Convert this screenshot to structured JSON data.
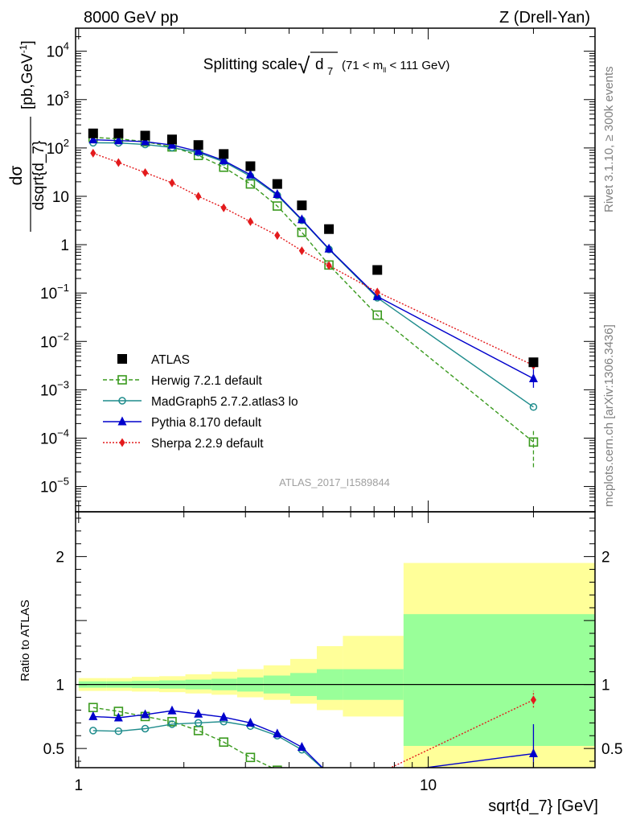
{
  "header": {
    "left": "8000 GeV pp",
    "right": "Z (Drell-Yan)"
  },
  "side_text": {
    "rivet": "Rivet 3.1.10, ≥ 300k events",
    "mcplots": "mcplots.cern.ch [arXiv:1306.3436]"
  },
  "chart_data": [
    {
      "type": "line",
      "panel": "main",
      "title": "Splitting scale",
      "title_symbol": "√d7",
      "title_cut": "(71 < m_ll < 111 GeV)",
      "title_sqrt": "√",
      "title_d": "d",
      "title_sub": "7",
      "title_cut_pre": "(71 < m",
      "title_cut_sub": "ll",
      "title_cut_post": " < 111 GeV)",
      "ylabel_num": "dσ",
      "ylabel_den": "dsqrt{d_7}",
      "ylabel_units": "[pb,GeV",
      "ylabel_units_sup": "-1",
      "ylabel_units_end": "]",
      "x_scale": "log",
      "y_scale": "log",
      "xlim": [
        0.98,
        30
      ],
      "ylim": [
        3e-06,
        30000
      ],
      "y_ticks": [
        {
          "v": 1e-05,
          "base": "10",
          "exp": "−5"
        },
        {
          "v": 0.0001,
          "base": "10",
          "exp": "−4"
        },
        {
          "v": 0.001,
          "base": "10",
          "exp": "−3"
        },
        {
          "v": 0.01,
          "base": "10",
          "exp": "−2"
        },
        {
          "v": 0.1,
          "base": "10",
          "exp": "−1"
        },
        {
          "v": 1,
          "base": "1",
          "exp": ""
        },
        {
          "v": 10,
          "base": "10",
          "exp": ""
        },
        {
          "v": 100,
          "base": "10",
          "exp": "2"
        },
        {
          "v": 1000,
          "base": "10",
          "exp": "3"
        },
        {
          "v": 10000,
          "base": "10",
          "exp": "4"
        }
      ],
      "watermark": "ATLAS_2017_I1589844",
      "legend_position": "bottom-left",
      "series": [
        {
          "name": "ATLAS",
          "color": "#000000",
          "marker": "filled-square",
          "line": "none",
          "x": [
            1.1,
            1.3,
            1.55,
            1.85,
            2.2,
            2.6,
            3.1,
            3.7,
            4.35,
            5.2,
            7.15,
            20.0
          ],
          "y": [
            200,
            200,
            180,
            150,
            115,
            75,
            42,
            18,
            6.5,
            2.1,
            0.3,
            0.0037
          ]
        },
        {
          "name": "Herwig 7.2.1 default",
          "color": "#3a9a1e",
          "marker": "open-square",
          "line": "dashed",
          "x": [
            1.1,
            1.3,
            1.55,
            1.85,
            2.2,
            2.6,
            3.1,
            3.7,
            4.35,
            5.2,
            7.15,
            20.0
          ],
          "y": [
            165,
            155,
            135,
            105,
            70,
            40,
            18,
            6.3,
            1.8,
            0.38,
            0.035,
            8.3e-05
          ],
          "err_last": [
            2.5e-05,
            0.00015
          ]
        },
        {
          "name": "MadGraph5 2.7.2.atlas3 lo",
          "color": "#1f8c8c",
          "marker": "open-circle",
          "line": "solid",
          "x": [
            1.1,
            1.3,
            1.55,
            1.85,
            2.2,
            2.6,
            3.1,
            3.7,
            4.35,
            5.2,
            7.15,
            20.0
          ],
          "y": [
            128,
            127,
            118,
            102,
            80,
            52,
            26,
            10.5,
            3.2,
            0.8,
            0.08,
            0.00044
          ]
        },
        {
          "name": "Pythia 8.170 default",
          "color": "#0000cc",
          "marker": "filled-triangle",
          "line": "solid",
          "x": [
            1.1,
            1.3,
            1.55,
            1.85,
            2.2,
            2.6,
            3.1,
            3.7,
            4.35,
            5.2,
            7.15,
            20.0
          ],
          "y": [
            148,
            142,
            135,
            115,
            85,
            55,
            28,
            11,
            3.3,
            0.82,
            0.085,
            0.0017
          ],
          "err_last": [
            0.0011,
            0.0027
          ]
        },
        {
          "name": "Sherpa 2.2.9 default",
          "color": "#e31a1c",
          "marker": "filled-diamond",
          "line": "dotted",
          "x": [
            1.1,
            1.3,
            1.55,
            1.85,
            2.2,
            2.6,
            3.1,
            3.7,
            4.35,
            5.2,
            7.15,
            20.0
          ],
          "y": [
            78,
            50,
            31,
            19,
            10,
            5.8,
            3.0,
            1.55,
            0.75,
            0.37,
            0.105,
            0.0032
          ]
        }
      ]
    },
    {
      "type": "line",
      "panel": "ratio",
      "ylabel": "Ratio to ATLAS",
      "xlabel": "sqrt{d_7} [GeV]",
      "x_scale": "log",
      "xlim": [
        0.98,
        30
      ],
      "ylim": [
        0.35,
        2.35
      ],
      "y_ticks": [
        0.5,
        1,
        2
      ],
      "x_ticks": [
        {
          "v": 1,
          "label": "1"
        },
        {
          "v": 10,
          "label": "10"
        }
      ],
      "bands": {
        "bin_edges": [
          1.0,
          1.2,
          1.42,
          1.7,
          2.02,
          2.4,
          2.84,
          3.38,
          4.03,
          4.8,
          5.7,
          8.5,
          30
        ],
        "inner_lo": [
          0.975,
          0.975,
          0.972,
          0.968,
          0.962,
          0.955,
          0.945,
          0.93,
          0.91,
          0.88,
          0.88,
          0.52
        ],
        "inner_hi": [
          1.025,
          1.025,
          1.028,
          1.032,
          1.038,
          1.045,
          1.055,
          1.07,
          1.09,
          1.12,
          1.12,
          1.55
        ],
        "outer_lo": [
          0.95,
          0.95,
          0.945,
          0.94,
          0.93,
          0.92,
          0.9,
          0.88,
          0.85,
          0.8,
          0.75,
          0.0
        ],
        "outer_hi": [
          1.05,
          1.05,
          1.06,
          1.065,
          1.08,
          1.1,
          1.12,
          1.15,
          1.2,
          1.3,
          1.38,
          1.95
        ],
        "inner_color": "#99ff99",
        "outer_color": "#ffff99"
      },
      "series": [
        {
          "name": "Herwig 7.2.1 default",
          "x": [
            1.1,
            1.3,
            1.55,
            1.85,
            2.2,
            2.6,
            3.1,
            3.7
          ],
          "y": [
            0.82,
            0.79,
            0.75,
            0.71,
            0.64,
            0.55,
            0.43,
            0.33
          ]
        },
        {
          "name": "MadGraph5 2.7.2.atlas3 lo",
          "x": [
            1.1,
            1.3,
            1.55,
            1.85,
            2.2,
            2.6,
            3.1,
            3.7,
            4.35,
            5.2
          ],
          "y": [
            0.64,
            0.635,
            0.655,
            0.69,
            0.7,
            0.71,
            0.675,
            0.6,
            0.49,
            0.3
          ]
        },
        {
          "name": "Pythia 8.170 default",
          "x": [
            1.1,
            1.3,
            1.55,
            1.85,
            2.2,
            2.6,
            3.1,
            3.7,
            4.35,
            5.2,
            7.15,
            20.0
          ],
          "y": [
            0.75,
            0.74,
            0.765,
            0.795,
            0.77,
            0.745,
            0.7,
            0.615,
            0.51,
            0.3,
            0.3,
            0.46
          ],
          "err_last": [
            0.3,
            0.69
          ]
        },
        {
          "name": "Sherpa 2.2.9 default",
          "x": [
            7.15,
            20.0
          ],
          "y": [
            0.3,
            0.88
          ],
          "err_last": [
            0.82,
            0.95
          ]
        }
      ]
    }
  ]
}
